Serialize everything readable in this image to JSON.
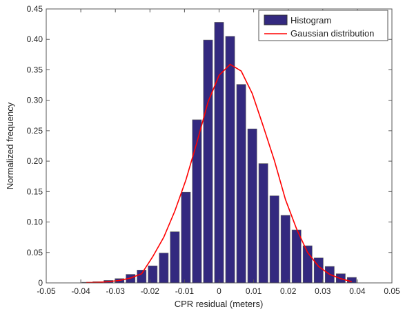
{
  "chart_data": {
    "type": "bar",
    "title": "",
    "xlabel": "CPR residual (meters)",
    "ylabel": "Normalized frequency",
    "xlim": [
      -0.05,
      0.05
    ],
    "ylim": [
      0,
      0.45
    ],
    "grid": false,
    "legend_placement": "top-right",
    "x_ticks": [
      "-0.05",
      "-0.04",
      "-0.03",
      "-0.02",
      "-0.01",
      "0",
      "0.01",
      "0.02",
      "0.03",
      "0.04",
      "0.05"
    ],
    "y_ticks": [
      "0",
      "0.05",
      "0.10",
      "0.15",
      "0.20",
      "0.25",
      "0.30",
      "0.35",
      "0.40",
      "0.45"
    ],
    "x": [
      -0.0384,
      -0.0352,
      -0.032,
      -0.0288,
      -0.0256,
      -0.0224,
      -0.0192,
      -0.016,
      -0.0128,
      -0.0096,
      -0.0064,
      -0.0032,
      0,
      0.0032,
      0.0064,
      0.0096,
      0.0128,
      0.016,
      0.0192,
      0.0224,
      0.0256,
      0.0288,
      0.032,
      0.0352,
      0.0384
    ],
    "series": [
      {
        "name": "Histogram",
        "kind": "bar",
        "color": "#33297f",
        "values": [
          0.001,
          0.002,
          0.004,
          0.007,
          0.014,
          0.021,
          0.028,
          0.049,
          0.084,
          0.149,
          0.268,
          0.399,
          0.428,
          0.405,
          0.326,
          0.253,
          0.196,
          0.143,
          0.111,
          0.087,
          0.061,
          0.041,
          0.027,
          0.015,
          0.009
        ]
      },
      {
        "name": "Gaussian distribution",
        "kind": "line",
        "color": "#ff0000",
        "values": [
          0.0005,
          0.001,
          0.002,
          0.004,
          0.008,
          0.015,
          0.043,
          0.075,
          0.118,
          0.169,
          0.231,
          0.297,
          0.341,
          0.359,
          0.348,
          0.311,
          0.257,
          0.201,
          0.137,
          0.089,
          0.05,
          0.027,
          0.014,
          0.007,
          0.002
        ]
      }
    ]
  }
}
